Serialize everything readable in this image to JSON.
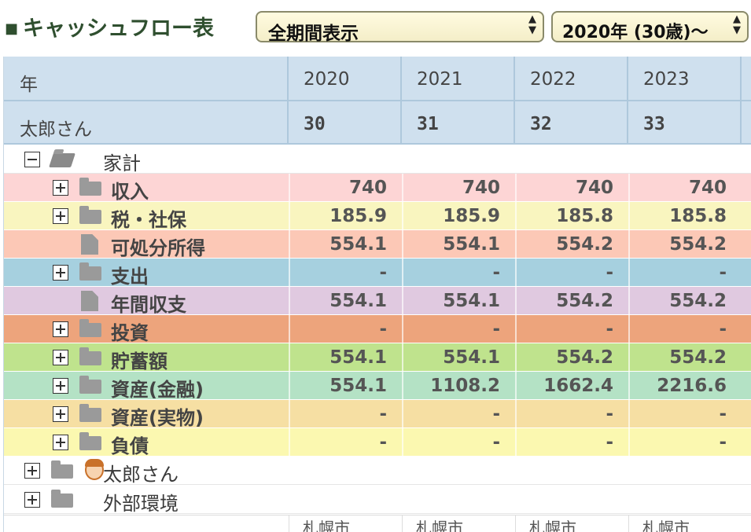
{
  "header": {
    "title": "キャッシュフロー表",
    "period_select": "全期間表示",
    "start_select": "2020年 (30歳)〜"
  },
  "table": {
    "year_label": "年",
    "years": [
      "2020",
      "2021",
      "2022",
      "2023"
    ],
    "person_label": "太郎さん",
    "ages": [
      "30",
      "31",
      "32",
      "33"
    ],
    "rows": [
      {
        "label": "家計",
        "values": [],
        "bg": "#ffffff"
      },
      {
        "label": "収入",
        "values": [
          "740",
          "740",
          "740",
          "740"
        ],
        "bg": "#fdd5d5"
      },
      {
        "label": "税・社保",
        "values": [
          "185.9",
          "185.9",
          "185.8",
          "185.8"
        ],
        "bg": "#f9f5bf"
      },
      {
        "label": "可処分所得",
        "values": [
          "554.1",
          "554.1",
          "554.2",
          "554.2"
        ],
        "bg": "#fcc8b6"
      },
      {
        "label": "支出",
        "values": [
          "-",
          "-",
          "-",
          "-"
        ],
        "bg": "#a6d0df"
      },
      {
        "label": "年間収支",
        "values": [
          "554.1",
          "554.1",
          "554.2",
          "554.2"
        ],
        "bg": "#e0c9e0"
      },
      {
        "label": "投資",
        "values": [
          "-",
          "-",
          "-",
          "-"
        ],
        "bg": "#eda47c"
      },
      {
        "label": "貯蓄額",
        "values": [
          "554.1",
          "554.1",
          "554.2",
          "554.2"
        ],
        "bg": "#bfe38d"
      },
      {
        "label": "資産(金融)",
        "values": [
          "554.1",
          "1108.2",
          "1662.4",
          "2216.6"
        ],
        "bg": "#b4e2c5"
      },
      {
        "label": "資産(実物)",
        "values": [
          "-",
          "-",
          "-",
          "-"
        ],
        "bg": "#f6dfa3"
      },
      {
        "label": "負債",
        "values": [
          "-",
          "-",
          "-",
          "-"
        ],
        "bg": "#fbf8b0"
      },
      {
        "label": "太郎さん",
        "values": [],
        "bg": "#ffffff"
      },
      {
        "label": "外部環境",
        "values": [],
        "bg": "#ffffff"
      }
    ],
    "footer_values": [
      "札幌市",
      "札幌市",
      "札幌市",
      "札幌市"
    ]
  }
}
